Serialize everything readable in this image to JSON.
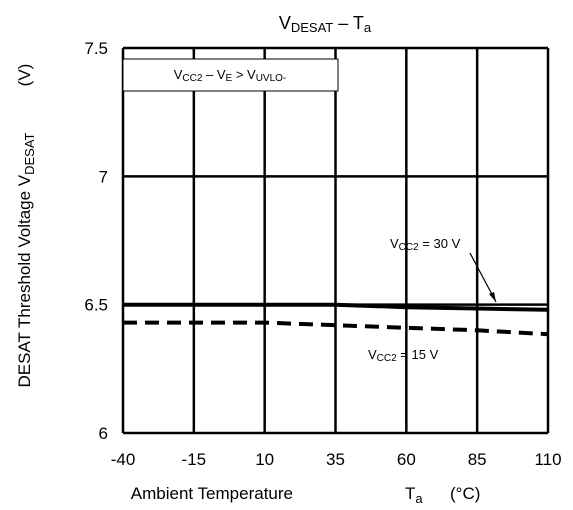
{
  "chart_data": {
    "type": "line",
    "title": "VDESAT – Ta",
    "title_parts": {
      "main": "V",
      "sub": "DESAT",
      "rest": " – T",
      "rest_sub": "a"
    },
    "xlabel": "Ambient Temperature",
    "xlabel_parts": {
      "var": "T",
      "var_sub": "a",
      "unit": "(°C)"
    },
    "ylabel": "DESAT Threshold Voltage VDESAT (V)",
    "ylabel_parts": {
      "main": "DESAT Threshold Voltage V",
      "sub": "DESAT",
      "unit": "(V)"
    },
    "xlim": [
      -40,
      110
    ],
    "ylim": [
      6,
      7.5
    ],
    "x_ticks": [
      -40,
      -15,
      10,
      35,
      60,
      85,
      110
    ],
    "x_tick_labels": [
      "-40",
      "-15",
      "10",
      "35",
      "60",
      "85",
      "110"
    ],
    "y_ticks": [
      6,
      6.5,
      7,
      7.5
    ],
    "y_tick_labels": [
      "6",
      "6.5",
      "7",
      "7.5"
    ],
    "grid": true,
    "legend_box": {
      "text": "VCC2 – VE > VUVLO-",
      "position": "top-left"
    },
    "series": [
      {
        "name": "VCC2 = 30 V",
        "style": "solid",
        "x": [
          -40,
          -15,
          10,
          35,
          60,
          85,
          110
        ],
        "y": [
          6.5,
          6.5,
          6.5,
          6.5,
          6.49,
          6.485,
          6.48
        ]
      },
      {
        "name": "VCC2 = 15 V",
        "style": "dashed",
        "x": [
          -40,
          -15,
          10,
          35,
          60,
          85,
          110
        ],
        "y": [
          6.43,
          6.43,
          6.43,
          6.42,
          6.41,
          6.4,
          6.385
        ]
      }
    ]
  }
}
